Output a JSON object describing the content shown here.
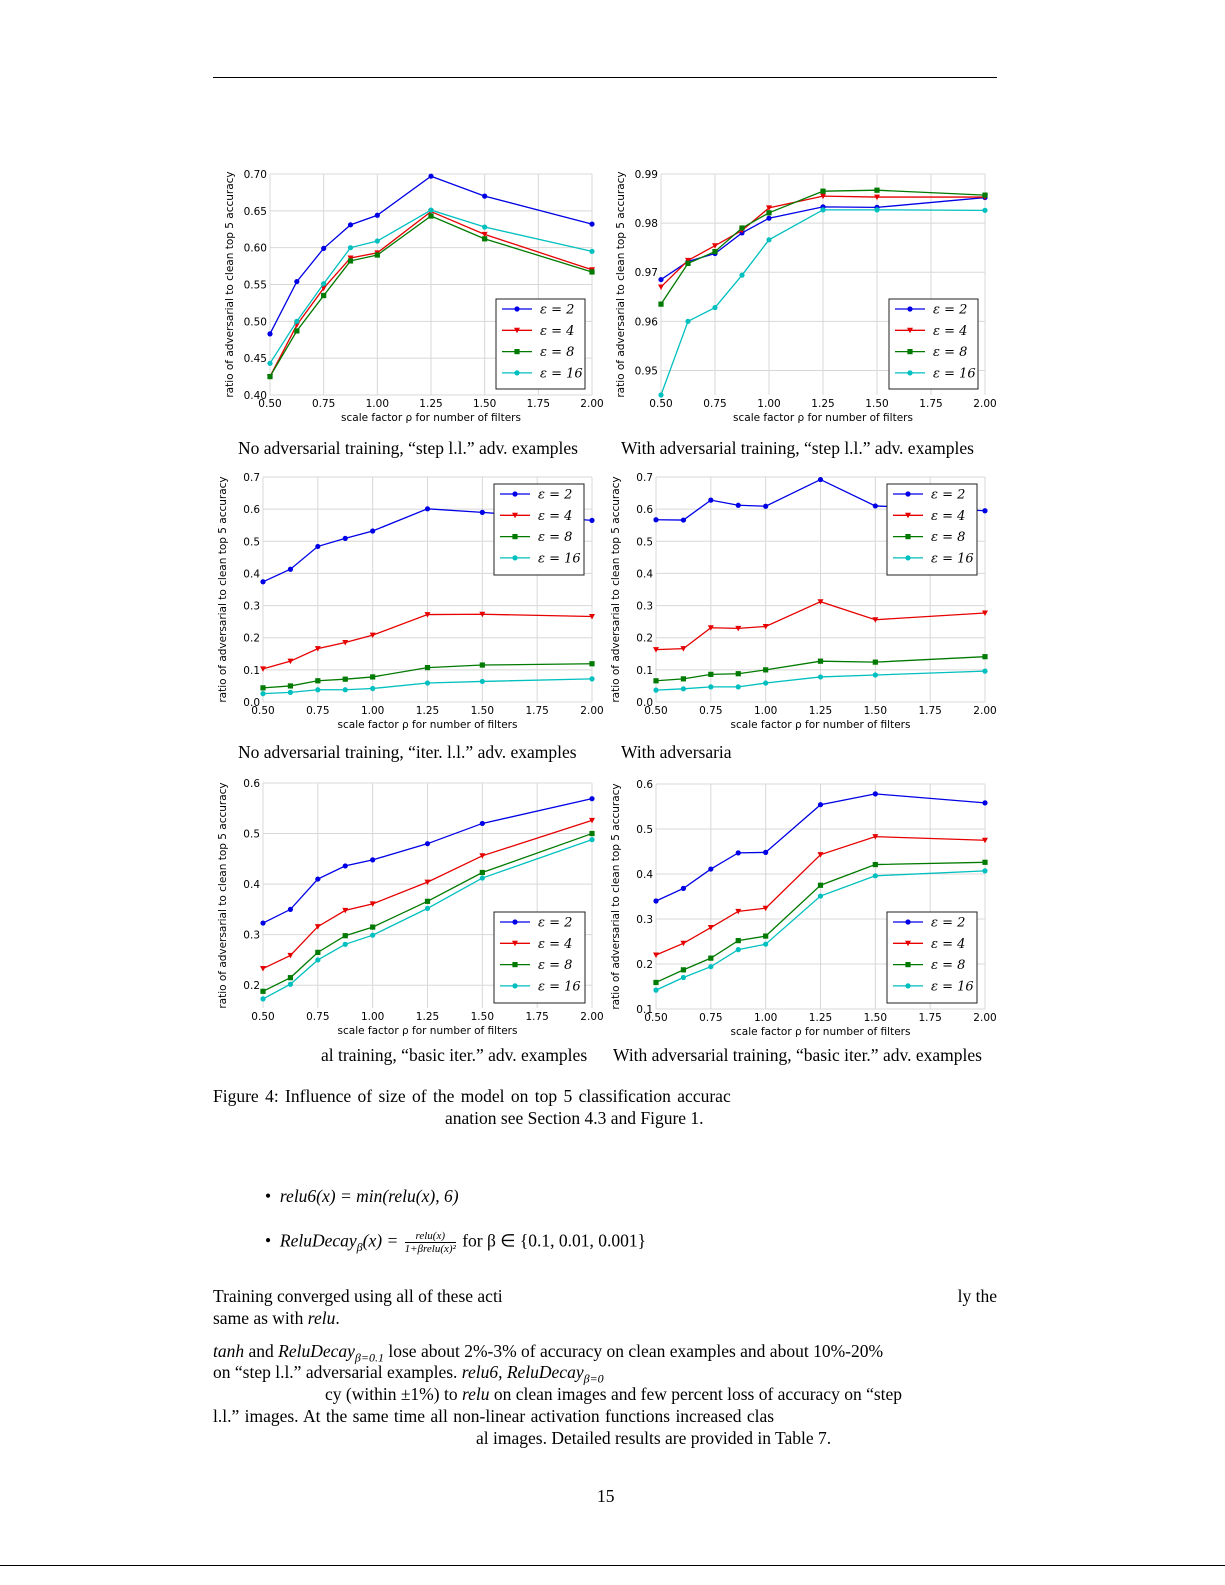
{
  "colors": {
    "eps2": "#0000e6",
    "eps4": "#e60000",
    "eps8": "#007a00",
    "eps16": "#00bfbf"
  },
  "chart_data": [
    {
      "type": "line",
      "caption": "No adversarial training, “step l.l.” adv. examples",
      "xlabel": "scale factor ρ for number of filters",
      "ylabel": "ratio of adversarial to clean top 5 accuracy",
      "x": [
        0.5,
        0.625,
        0.75,
        0.875,
        1.0,
        1.25,
        1.5,
        2.0
      ],
      "xlim": [
        0.5,
        2.0
      ],
      "xticks": [
        "0.50",
        "0.75",
        "1.00",
        "1.25",
        "1.50",
        "1.75",
        "2.00"
      ],
      "ylim": [
        0.4,
        0.7
      ],
      "yticks": [
        "0.40",
        "0.45",
        "0.50",
        "0.55",
        "0.60",
        "0.65",
        "0.70"
      ],
      "grid": true,
      "legend": "lower-right",
      "series": [
        {
          "name": "ε = 2",
          "marker": "circle",
          "values": [
            0.483,
            0.554,
            0.599,
            0.631,
            0.644,
            0.697,
            0.67,
            0.632
          ]
        },
        {
          "name": "ε = 4",
          "marker": "triangle-down",
          "values": [
            0.425,
            0.495,
            0.545,
            0.586,
            0.593,
            0.649,
            0.618,
            0.57
          ]
        },
        {
          "name": "ε = 8",
          "marker": "square",
          "values": [
            0.425,
            0.487,
            0.535,
            0.582,
            0.59,
            0.643,
            0.612,
            0.567
          ]
        },
        {
          "name": "ε = 16",
          "marker": "circle",
          "values": [
            0.443,
            0.5,
            0.551,
            0.6,
            0.609,
            0.651,
            0.628,
            0.595
          ]
        }
      ]
    },
    {
      "type": "line",
      "caption": "With adversarial training, “step l.l.” adv. examples",
      "xlabel": "scale factor ρ for number of filters",
      "ylabel": "ratio of adversarial to clean top 5 accuracy",
      "x": [
        0.5,
        0.625,
        0.75,
        0.875,
        1.0,
        1.25,
        1.5,
        2.0
      ],
      "xlim": [
        0.5,
        2.0
      ],
      "xticks": [
        "0.50",
        "0.75",
        "1.00",
        "1.25",
        "1.50",
        "1.75",
        "2.00"
      ],
      "ylim": [
        0.945,
        0.99
      ],
      "yticks": [
        "0.95",
        "0.96",
        "0.97",
        "0.98",
        "0.99"
      ],
      "grid": true,
      "legend": "lower-right",
      "series": [
        {
          "name": "ε = 2",
          "marker": "circle",
          "values": [
            0.9685,
            0.9722,
            0.9738,
            0.978,
            0.981,
            0.9833,
            0.9832,
            0.9852
          ]
        },
        {
          "name": "ε = 4",
          "marker": "triangle-down",
          "values": [
            0.967,
            0.9724,
            0.9754,
            0.9785,
            0.9831,
            0.9855,
            0.9853,
            0.9853
          ]
        },
        {
          "name": "ε = 8",
          "marker": "square",
          "values": [
            0.9635,
            0.9718,
            0.9742,
            0.979,
            0.9821,
            0.9865,
            0.9867,
            0.9857
          ]
        },
        {
          "name": "ε = 16",
          "marker": "circle",
          "values": [
            0.945,
            0.96,
            0.9628,
            0.9694,
            0.9766,
            0.9827,
            0.9827,
            0.9826
          ]
        }
      ]
    },
    {
      "type": "line",
      "caption": "No adversarial training, “iter. l.l.” adv. examples",
      "xlabel": "scale factor ρ for number of filters",
      "ylabel": "ratio of adversarial to clean top 5 accuracy",
      "x": [
        0.5,
        0.625,
        0.75,
        0.875,
        1.0,
        1.25,
        1.5,
        2.0
      ],
      "xlim": [
        0.5,
        2.0
      ],
      "xticks": [
        "0.50",
        "0.75",
        "1.00",
        "1.25",
        "1.50",
        "1.75",
        "2.00"
      ],
      "ylim": [
        0.0,
        0.7
      ],
      "yticks": [
        "0.0",
        "0.1",
        "0.2",
        "0.3",
        "0.4",
        "0.5",
        "0.6",
        "0.7"
      ],
      "grid": true,
      "legend": "upper-right",
      "series": [
        {
          "name": "ε = 2",
          "marker": "circle",
          "values": [
            0.374,
            0.413,
            0.484,
            0.509,
            0.532,
            0.601,
            0.59,
            0.565
          ]
        },
        {
          "name": "ε = 4",
          "marker": "triangle-down",
          "values": [
            0.103,
            0.127,
            0.166,
            0.185,
            0.208,
            0.272,
            0.273,
            0.266
          ]
        },
        {
          "name": "ε = 8",
          "marker": "square",
          "values": [
            0.044,
            0.05,
            0.066,
            0.071,
            0.078,
            0.107,
            0.115,
            0.119
          ]
        },
        {
          "name": "ε = 16",
          "marker": "circle",
          "values": [
            0.026,
            0.03,
            0.038,
            0.038,
            0.042,
            0.059,
            0.064,
            0.072
          ]
        }
      ]
    },
    {
      "type": "line",
      "caption": "With adversaria",
      "xlabel": "scale factor ρ for number of filters",
      "ylabel": "ratio of adversarial to clean top 5 accuracy",
      "x": [
        0.5,
        0.625,
        0.75,
        0.875,
        1.0,
        1.25,
        1.5,
        2.0
      ],
      "xlim": [
        0.5,
        2.0
      ],
      "xticks": [
        "0.50",
        "0.75",
        "1.00",
        "1.25",
        "1.50",
        "1.75",
        "2.00"
      ],
      "ylim": [
        0.0,
        0.7
      ],
      "yticks": [
        "0.0",
        "0.1",
        "0.2",
        "0.3",
        "0.4",
        "0.5",
        "0.6",
        "0.7"
      ],
      "grid": true,
      "legend": "upper-right",
      "series": [
        {
          "name": "ε = 2",
          "marker": "circle",
          "values": [
            0.567,
            0.566,
            0.628,
            0.612,
            0.609,
            0.692,
            0.61,
            0.595
          ]
        },
        {
          "name": "ε = 4",
          "marker": "triangle-down",
          "values": [
            0.163,
            0.166,
            0.231,
            0.229,
            0.235,
            0.312,
            0.256,
            0.277
          ]
        },
        {
          "name": "ε = 8",
          "marker": "square",
          "values": [
            0.066,
            0.072,
            0.086,
            0.088,
            0.1,
            0.127,
            0.124,
            0.141
          ]
        },
        {
          "name": "ε = 16",
          "marker": "circle",
          "values": [
            0.037,
            0.041,
            0.047,
            0.047,
            0.059,
            0.078,
            0.084,
            0.096
          ]
        }
      ]
    },
    {
      "type": "line",
      "caption": "al training, “basic iter.” adv. examples",
      "xlabel": "scale factor ρ for number of filters",
      "ylabel": "ratio of adversarial to clean top 5 accuracy",
      "x": [
        0.5,
        0.625,
        0.75,
        0.875,
        1.0,
        1.25,
        1.5,
        2.0
      ],
      "xlim": [
        0.5,
        2.0
      ],
      "xticks": [
        "0.50",
        "0.75",
        "1.00",
        "1.25",
        "1.50",
        "1.75",
        "2.00"
      ],
      "ylim": [
        0.155,
        0.6
      ],
      "yticks": [
        "0.2",
        "0.3",
        "0.4",
        "0.5",
        "0.6"
      ],
      "grid": true,
      "legend": "lower-right",
      "series": [
        {
          "name": "ε = 2",
          "marker": "circle",
          "values": [
            0.323,
            0.35,
            0.41,
            0.436,
            0.448,
            0.48,
            0.52,
            0.569
          ]
        },
        {
          "name": "ε = 4",
          "marker": "triangle-down",
          "values": [
            0.233,
            0.259,
            0.316,
            0.348,
            0.361,
            0.404,
            0.456,
            0.526
          ]
        },
        {
          "name": "ε = 8",
          "marker": "square",
          "values": [
            0.188,
            0.215,
            0.265,
            0.298,
            0.315,
            0.366,
            0.423,
            0.5
          ]
        },
        {
          "name": "ε = 16",
          "marker": "circle",
          "values": [
            0.173,
            0.202,
            0.25,
            0.281,
            0.299,
            0.352,
            0.412,
            0.488
          ]
        }
      ]
    },
    {
      "type": "line",
      "caption": "With adversarial training, “basic iter.” adv. examples",
      "xlabel": "scale factor ρ for number of filters",
      "ylabel": "ratio of adversarial to clean top 5 accuracy",
      "x": [
        0.5,
        0.625,
        0.75,
        0.875,
        1.0,
        1.25,
        1.5,
        2.0
      ],
      "xlim": [
        0.5,
        2.0
      ],
      "xticks": [
        "0.50",
        "0.75",
        "1.00",
        "1.25",
        "1.50",
        "1.75",
        "2.00"
      ],
      "ylim": [
        0.1,
        0.6
      ],
      "yticks": [
        "0.1",
        "0.2",
        "0.3",
        "0.4",
        "0.5",
        "0.6"
      ],
      "grid": true,
      "legend": "lower-right",
      "series": [
        {
          "name": "ε = 2",
          "marker": "circle",
          "values": [
            0.34,
            0.368,
            0.411,
            0.447,
            0.448,
            0.554,
            0.578,
            0.558
          ]
        },
        {
          "name": "ε = 4",
          "marker": "triangle-down",
          "values": [
            0.22,
            0.246,
            0.281,
            0.317,
            0.324,
            0.443,
            0.483,
            0.475
          ]
        },
        {
          "name": "ε = 8",
          "marker": "square",
          "values": [
            0.159,
            0.187,
            0.213,
            0.252,
            0.262,
            0.375,
            0.421,
            0.426
          ]
        },
        {
          "name": "ε = 16",
          "marker": "circle",
          "values": [
            0.142,
            0.17,
            0.194,
            0.232,
            0.244,
            0.351,
            0.396,
            0.407
          ]
        }
      ]
    }
  ],
  "figure_caption": {
    "line1": "Figure 4:  Influence of size of the model on top 5 classification accurac",
    "line2": "anation see Section 4.3 and Figure 1."
  },
  "bullets": {
    "b1": "relu6(x) = min(relu(x), 6)",
    "b2_lhs": "ReluDecay",
    "b2_sub": "β",
    "b2_eq": "(x) =",
    "b2_num": "relu(x)",
    "b2_den": "1+βrelu(x)²",
    "b2_tail": "for β ∈ {0.1, 0.01, 0.001}"
  },
  "para1": {
    "line1_left": "Training converged using all of these acti",
    "line1_right": "ly the",
    "line2_a": "same as with ",
    "line2_m": "relu",
    "line2_b": "."
  },
  "para2": {
    "l1_m1": "tanh",
    "l1_a": " and ",
    "l1_m2": "ReluDecay",
    "l1_sub": "β=0.1",
    "l1_b": " lose about 2%-3% of accuracy on clean examples and about 10%-20%",
    "l2_a": "on “step l.l.” adversarial examples. ",
    "l2_m": "relu6, ReluDecay",
    "l2_sub": "β=0",
    "l3_a": "cy (within ±1%) to ",
    "l3_m": "relu",
    "l3_b": " on clean images and few percent loss of accuracy on “step",
    "l4": "l.l.”  images.  At the same time all non-linear activation functions increased clas",
    "l5": "al images. Detailed results are provided in Table 7."
  },
  "page_number": "15"
}
